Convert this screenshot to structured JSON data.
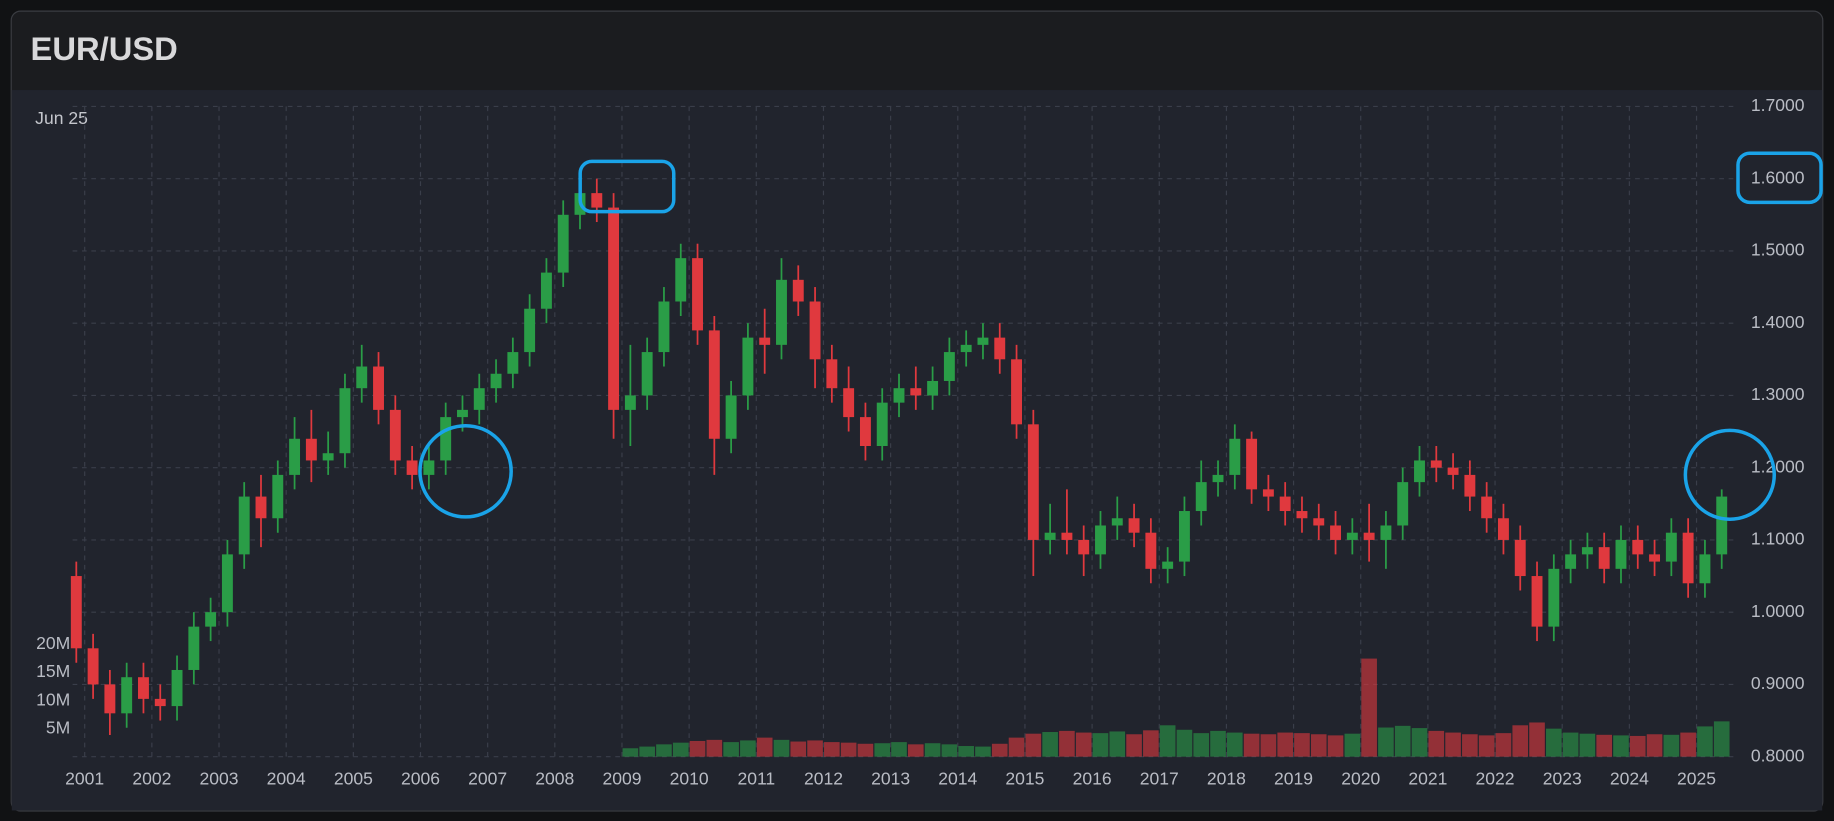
{
  "chart_data": {
    "type": "candlestick",
    "title": "EUR/USD",
    "legend_date": "Jun 25",
    "up_color": "#2a9d47",
    "down_color": "#e0393e",
    "grid": true,
    "x": [
      2000.875,
      2001.125,
      2001.375,
      2001.625,
      2001.875,
      2002.125,
      2002.375,
      2002.625,
      2002.875,
      2003.125,
      2003.375,
      2003.625,
      2003.875,
      2004.125,
      2004.375,
      2004.625,
      2004.875,
      2005.125,
      2005.375,
      2005.625,
      2005.875,
      2006.125,
      2006.375,
      2006.625,
      2006.875,
      2007.125,
      2007.375,
      2007.625,
      2007.875,
      2008.125,
      2008.375,
      2008.625,
      2008.875,
      2009.125,
      2009.375,
      2009.625,
      2009.875,
      2010.125,
      2010.375,
      2010.625,
      2010.875,
      2011.125,
      2011.375,
      2011.625,
      2011.875,
      2012.125,
      2012.375,
      2012.625,
      2012.875,
      2013.125,
      2013.375,
      2013.625,
      2013.875,
      2014.125,
      2014.375,
      2014.625,
      2014.875,
      2015.125,
      2015.375,
      2015.625,
      2015.875,
      2016.125,
      2016.375,
      2016.625,
      2016.875,
      2017.125,
      2017.375,
      2017.625,
      2017.875,
      2018.125,
      2018.375,
      2018.625,
      2018.875,
      2019.125,
      2019.375,
      2019.625,
      2019.875,
      2020.125,
      2020.375,
      2020.625,
      2020.875,
      2021.125,
      2021.375,
      2021.625,
      2021.875,
      2022.125,
      2022.375,
      2022.625,
      2022.875,
      2023.125,
      2023.375,
      2023.625,
      2023.875,
      2024.125,
      2024.375,
      2024.625,
      2024.875,
      2025.125,
      2025.375
    ],
    "open": [
      1.05,
      0.95,
      0.9,
      0.86,
      0.91,
      0.88,
      0.87,
      0.92,
      0.98,
      1.0,
      1.08,
      1.16,
      1.13,
      1.19,
      1.24,
      1.21,
      1.22,
      1.31,
      1.34,
      1.28,
      1.21,
      1.19,
      1.21,
      1.27,
      1.28,
      1.31,
      1.33,
      1.36,
      1.42,
      1.47,
      1.55,
      1.58,
      1.56,
      1.28,
      1.3,
      1.36,
      1.43,
      1.49,
      1.39,
      1.24,
      1.3,
      1.38,
      1.37,
      1.46,
      1.43,
      1.35,
      1.31,
      1.27,
      1.23,
      1.29,
      1.31,
      1.3,
      1.32,
      1.36,
      1.37,
      1.38,
      1.35,
      1.26,
      1.1,
      1.11,
      1.1,
      1.08,
      1.12,
      1.13,
      1.11,
      1.06,
      1.07,
      1.14,
      1.18,
      1.19,
      1.24,
      1.17,
      1.16,
      1.14,
      1.13,
      1.12,
      1.1,
      1.11,
      1.1,
      1.12,
      1.18,
      1.21,
      1.2,
      1.19,
      1.16,
      1.13,
      1.1,
      1.05,
      0.98,
      1.06,
      1.08,
      1.09,
      1.06,
      1.1,
      1.08,
      1.07,
      1.11,
      1.04,
      1.08
    ],
    "high": [
      1.07,
      0.97,
      0.92,
      0.93,
      0.93,
      0.9,
      0.94,
      1.0,
      1.02,
      1.1,
      1.18,
      1.19,
      1.21,
      1.27,
      1.28,
      1.25,
      1.33,
      1.37,
      1.36,
      1.3,
      1.23,
      1.23,
      1.29,
      1.3,
      1.33,
      1.35,
      1.38,
      1.44,
      1.49,
      1.57,
      1.6,
      1.6,
      1.58,
      1.37,
      1.38,
      1.45,
      1.51,
      1.51,
      1.41,
      1.32,
      1.4,
      1.42,
      1.49,
      1.48,
      1.45,
      1.37,
      1.34,
      1.29,
      1.31,
      1.33,
      1.34,
      1.34,
      1.38,
      1.39,
      1.4,
      1.4,
      1.37,
      1.28,
      1.15,
      1.17,
      1.12,
      1.14,
      1.16,
      1.15,
      1.13,
      1.09,
      1.16,
      1.21,
      1.21,
      1.26,
      1.25,
      1.19,
      1.18,
      1.16,
      1.15,
      1.14,
      1.13,
      1.15,
      1.14,
      1.2,
      1.23,
      1.23,
      1.22,
      1.21,
      1.18,
      1.15,
      1.12,
      1.07,
      1.08,
      1.1,
      1.11,
      1.11,
      1.12,
      1.12,
      1.1,
      1.13,
      1.13,
      1.1,
      1.17
    ],
    "low": [
      0.93,
      0.88,
      0.83,
      0.84,
      0.86,
      0.85,
      0.85,
      0.9,
      0.96,
      0.98,
      1.06,
      1.09,
      1.11,
      1.17,
      1.18,
      1.19,
      1.2,
      1.29,
      1.26,
      1.19,
      1.17,
      1.17,
      1.19,
      1.25,
      1.26,
      1.29,
      1.31,
      1.34,
      1.4,
      1.45,
      1.53,
      1.54,
      1.24,
      1.23,
      1.28,
      1.34,
      1.41,
      1.37,
      1.19,
      1.22,
      1.28,
      1.33,
      1.35,
      1.41,
      1.31,
      1.29,
      1.25,
      1.21,
      1.21,
      1.27,
      1.28,
      1.28,
      1.3,
      1.34,
      1.35,
      1.33,
      1.24,
      1.05,
      1.08,
      1.08,
      1.05,
      1.06,
      1.1,
      1.09,
      1.04,
      1.04,
      1.05,
      1.12,
      1.16,
      1.17,
      1.15,
      1.14,
      1.12,
      1.11,
      1.1,
      1.08,
      1.08,
      1.07,
      1.06,
      1.1,
      1.16,
      1.18,
      1.17,
      1.14,
      1.11,
      1.08,
      1.03,
      0.96,
      0.96,
      1.04,
      1.06,
      1.04,
      1.04,
      1.06,
      1.05,
      1.05,
      1.02,
      1.02,
      1.06
    ],
    "close": [
      0.95,
      0.9,
      0.86,
      0.91,
      0.88,
      0.87,
      0.92,
      0.98,
      1.0,
      1.08,
      1.16,
      1.13,
      1.19,
      1.24,
      1.21,
      1.22,
      1.31,
      1.34,
      1.28,
      1.21,
      1.19,
      1.21,
      1.27,
      1.28,
      1.31,
      1.33,
      1.36,
      1.42,
      1.47,
      1.55,
      1.58,
      1.56,
      1.28,
      1.3,
      1.36,
      1.43,
      1.49,
      1.39,
      1.24,
      1.3,
      1.38,
      1.37,
      1.46,
      1.43,
      1.35,
      1.31,
      1.27,
      1.23,
      1.29,
      1.31,
      1.3,
      1.32,
      1.36,
      1.37,
      1.38,
      1.35,
      1.26,
      1.1,
      1.11,
      1.1,
      1.08,
      1.12,
      1.13,
      1.11,
      1.06,
      1.07,
      1.14,
      1.18,
      1.19,
      1.24,
      1.17,
      1.16,
      1.14,
      1.13,
      1.12,
      1.1,
      1.11,
      1.1,
      1.12,
      1.18,
      1.21,
      1.2,
      1.19,
      1.16,
      1.13,
      1.1,
      1.05,
      0.98,
      1.06,
      1.08,
      1.09,
      1.06,
      1.1,
      1.08,
      1.07,
      1.11,
      1.04,
      1.08,
      1.16
    ],
    "volume": [
      null,
      null,
      null,
      null,
      null,
      null,
      null,
      null,
      null,
      null,
      null,
      null,
      null,
      null,
      null,
      null,
      null,
      null,
      null,
      null,
      null,
      null,
      null,
      null,
      null,
      null,
      null,
      null,
      null,
      null,
      null,
      null,
      null,
      1500000,
      1800000,
      2200000,
      2500000,
      2800000,
      3000000,
      2600000,
      2900000,
      3400000,
      3000000,
      2700000,
      2900000,
      2600000,
      2500000,
      2300000,
      2400000,
      2600000,
      2200000,
      2400000,
      2200000,
      1900000,
      1800000,
      2300000,
      3400000,
      4100000,
      4400000,
      4600000,
      4300000,
      4200000,
      4500000,
      4000000,
      4700000,
      5600000,
      4800000,
      4200000,
      4600000,
      4300000,
      4100000,
      4000000,
      4300000,
      4200000,
      4000000,
      3800000,
      4100000,
      17500000,
      5200000,
      5500000,
      5100000,
      4600000,
      4300000,
      4000000,
      3800000,
      4200000,
      5600000,
      6100000,
      5000000,
      4300000,
      4100000,
      3900000,
      3800000,
      3700000,
      4000000,
      3900000,
      4300000,
      5400000,
      6300000
    ],
    "xlim": [
      2000.82,
      2025.6
    ],
    "xticks": [
      2001,
      2002,
      2003,
      2004,
      2005,
      2006,
      2007,
      2008,
      2009,
      2010,
      2011,
      2012,
      2013,
      2014,
      2015,
      2016,
      2017,
      2018,
      2019,
      2020,
      2021,
      2022,
      2023,
      2024,
      2025
    ],
    "ylim": [
      0.8,
      1.7
    ],
    "yticks": [
      {
        "value": 0.8,
        "label": "0.8000"
      },
      {
        "value": 0.9,
        "label": "0.9000"
      },
      {
        "value": 1.0,
        "label": "1.0000"
      },
      {
        "value": 1.1,
        "label": "1.1000"
      },
      {
        "value": 1.2,
        "label": "1.2000"
      },
      {
        "value": 1.3,
        "label": "1.3000"
      },
      {
        "value": 1.4,
        "label": "1.4000"
      },
      {
        "value": 1.5,
        "label": "1.5000"
      },
      {
        "value": 1.6,
        "label": "1.6000"
      },
      {
        "value": 1.7,
        "label": "1.7000"
      }
    ],
    "y2lim": [
      0,
      116000000
    ],
    "y2ticks": [
      {
        "value": 5000000,
        "label": "5M"
      },
      {
        "value": 10000000,
        "label": "10M"
      },
      {
        "value": 15000000,
        "label": "15M"
      },
      {
        "value": 20000000,
        "label": "20M"
      }
    ]
  }
}
